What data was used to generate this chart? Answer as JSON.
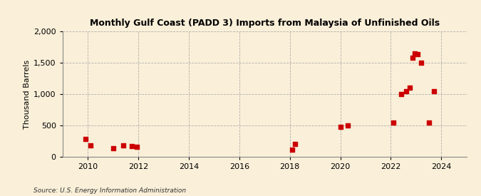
{
  "title": "Monthly Gulf Coast (PADD 3) Imports from Malaysia of Unfinished Oils",
  "ylabel": "Thousand Barrels",
  "source": "Source: U.S. Energy Information Administration",
  "background_color": "#faefd8",
  "marker_color": "#cc0000",
  "xlim": [
    2009.0,
    2025.0
  ],
  "ylim": [
    0,
    2000
  ],
  "yticks": [
    0,
    500,
    1000,
    1500,
    2000
  ],
  "xticks": [
    2010,
    2012,
    2014,
    2016,
    2018,
    2020,
    2022,
    2024
  ],
  "data_points": [
    [
      2009.9,
      280
    ],
    [
      2010.1,
      185
    ],
    [
      2011.0,
      140
    ],
    [
      2011.4,
      185
    ],
    [
      2011.75,
      175
    ],
    [
      2011.95,
      160
    ],
    [
      2018.1,
      110
    ],
    [
      2018.2,
      200
    ],
    [
      2020.0,
      480
    ],
    [
      2020.3,
      500
    ],
    [
      2022.1,
      540
    ],
    [
      2022.4,
      1000
    ],
    [
      2022.6,
      1050
    ],
    [
      2022.75,
      1100
    ],
    [
      2022.85,
      1580
    ],
    [
      2022.95,
      1650
    ],
    [
      2023.05,
      1640
    ],
    [
      2023.2,
      1500
    ],
    [
      2023.5,
      540
    ],
    [
      2023.7,
      1040
    ]
  ]
}
